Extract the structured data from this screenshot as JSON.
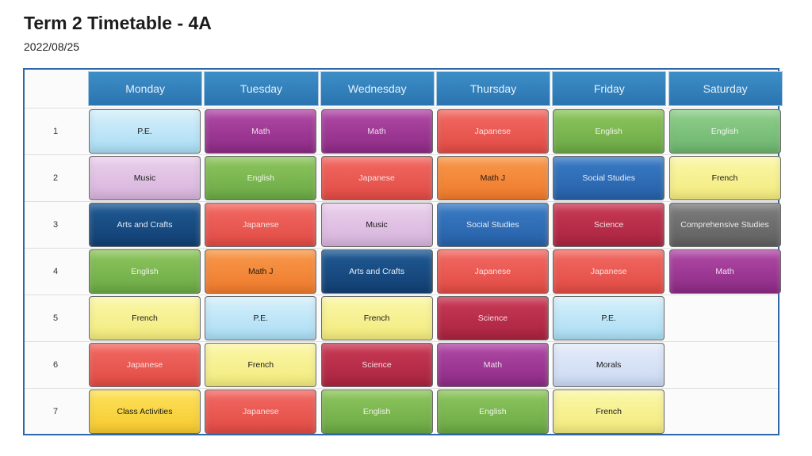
{
  "title": "Term 2 Timetable - 4A",
  "date": "2022/08/25",
  "days": [
    "Monday",
    "Tuesday",
    "Wednesday",
    "Thursday",
    "Friday",
    "Saturday"
  ],
  "periods": [
    "1",
    "2",
    "3",
    "4",
    "5",
    "6",
    "7"
  ],
  "colors": {
    "header": "#2f7fbe",
    "border": "#2f68a8"
  },
  "schedule": [
    [
      {
        "subject": "P.E.",
        "color": "pe"
      },
      {
        "subject": "Music",
        "color": "music"
      },
      {
        "subject": "Arts and Crafts",
        "color": "arts"
      },
      {
        "subject": "English",
        "color": "eng"
      },
      {
        "subject": "French",
        "color": "french"
      },
      {
        "subject": "Japanese",
        "color": "jpn"
      },
      {
        "subject": "Class Activities",
        "color": "class"
      }
    ],
    [
      {
        "subject": "Math",
        "color": "math"
      },
      {
        "subject": "English",
        "color": "eng"
      },
      {
        "subject": "Japanese",
        "color": "jpn"
      },
      {
        "subject": "Math J",
        "color": "mathj"
      },
      {
        "subject": "P.E.",
        "color": "pe"
      },
      {
        "subject": "French",
        "color": "french"
      },
      {
        "subject": "Japanese",
        "color": "jpn"
      }
    ],
    [
      {
        "subject": "Math",
        "color": "math"
      },
      {
        "subject": "Japanese",
        "color": "jpn"
      },
      {
        "subject": "Music",
        "color": "music"
      },
      {
        "subject": "Arts and Crafts",
        "color": "arts"
      },
      {
        "subject": "French",
        "color": "french"
      },
      {
        "subject": "Science",
        "color": "sci"
      },
      {
        "subject": "English",
        "color": "eng"
      }
    ],
    [
      {
        "subject": "Japanese",
        "color": "jpn"
      },
      {
        "subject": "Math J",
        "color": "mathj"
      },
      {
        "subject": "Social Studies",
        "color": "ss"
      },
      {
        "subject": "Japanese",
        "color": "jpn"
      },
      {
        "subject": "Science",
        "color": "sci"
      },
      {
        "subject": "Math",
        "color": "math"
      },
      {
        "subject": "English",
        "color": "eng"
      }
    ],
    [
      {
        "subject": "English",
        "color": "eng"
      },
      {
        "subject": "Social Studies",
        "color": "ss"
      },
      {
        "subject": "Science",
        "color": "sci"
      },
      {
        "subject": "Japanese",
        "color": "jpn"
      },
      {
        "subject": "P.E.",
        "color": "pe"
      },
      {
        "subject": "Morals",
        "color": "morals"
      },
      {
        "subject": "French",
        "color": "french"
      }
    ],
    [
      {
        "subject": "English",
        "color": "engsat"
      },
      {
        "subject": "French",
        "color": "french"
      },
      {
        "subject": "Comprehensive Studies",
        "color": "comp"
      },
      {
        "subject": "Math",
        "color": "math"
      }
    ]
  ]
}
